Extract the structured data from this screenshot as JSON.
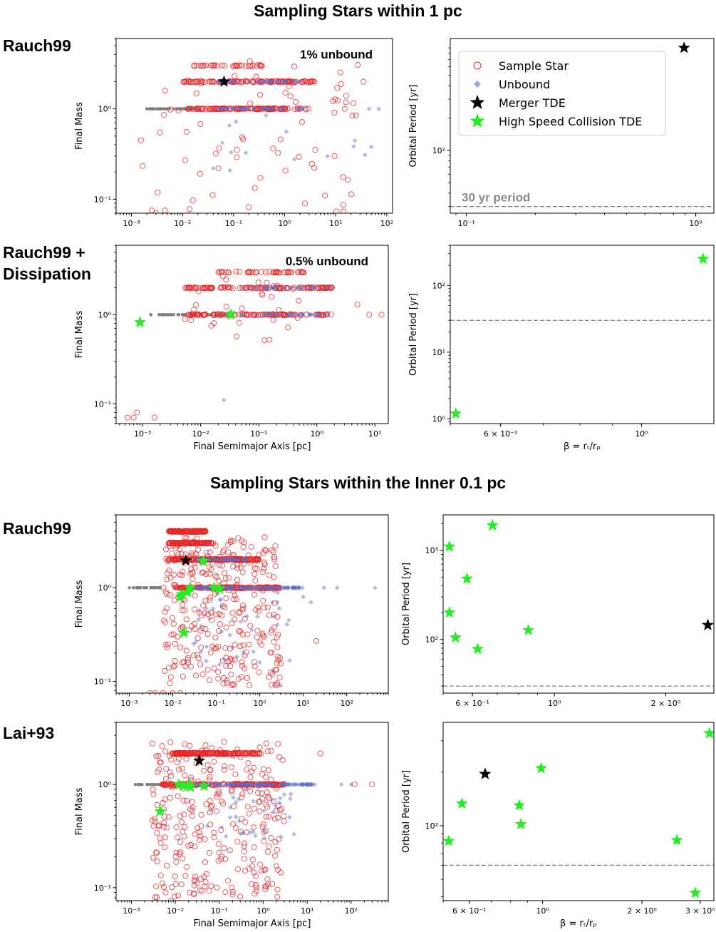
{
  "section_titles": [
    "Sampling Stars within 1 pc",
    "Sampling Stars within the Inner 0.1 pc"
  ],
  "row_labels": [
    "Rauch99",
    "Rauch99 + Dissipation",
    "Rauch99",
    "Lai+93"
  ],
  "legend": {
    "sample": "Sample Star",
    "unbound": "Unbound",
    "merger": "Merger TDE",
    "hsc": "High Speed Collision TDE"
  },
  "colors": {
    "sample": "#e8282a",
    "unbound": "#5a6cc8",
    "bound_gray": "#808080",
    "merger": "#000000",
    "hsc": "#22ee22",
    "reference_line": "#808080"
  },
  "chart_data": [
    {
      "id": "p1",
      "type": "scatter",
      "title": "",
      "xlabel": "",
      "ylabel": "Final Mass",
      "xscale": "log",
      "yscale": "log",
      "xlim": [
        0.0005,
        130
      ],
      "ylim": [
        0.07,
        6
      ],
      "xticks": [
        0.001,
        0.01,
        0.1,
        1,
        10,
        100
      ],
      "xticklabels": [
        "10⁻³",
        "10⁻²",
        "10⁻¹",
        "10⁰",
        "10¹",
        "10²"
      ],
      "yticks": [
        0.1,
        1
      ],
      "yticklabels": [
        "10⁻¹",
        "10⁰"
      ],
      "annotation": "1% unbound",
      "annotation_position": "top-right",
      "bands": {
        "gray_line": {
          "mass": 1,
          "x_range": [
            0.0015,
            0.02
          ]
        },
        "sample_bands": [
          {
            "mass": 1,
            "x_range": [
              0.012,
              3
            ],
            "n": 120
          },
          {
            "mass": 2,
            "x_range": [
              0.01,
              4
            ],
            "n": 110
          },
          {
            "mass": 3,
            "x_range": [
              0.013,
              0.5
            ],
            "n": 35
          }
        ],
        "sample_scatter": {
          "x_range": [
            0.0015,
            30
          ],
          "m_range": [
            0.07,
            3.5
          ],
          "n": 70
        },
        "unbound_bands": [
          {
            "mass": 1,
            "x_range": [
              0.05,
              3
            ],
            "n": 40
          },
          {
            "mass": 2,
            "x_range": [
              0.05,
              3
            ],
            "n": 40
          }
        ],
        "unbound_scatter": {
          "x_range": [
            0.05,
            70
          ],
          "m_range": [
            0.2,
            1
          ],
          "n": 12
        },
        "extra_sample": [
          [
            0.0025,
            0.075
          ],
          [
            0.003,
            0.07
          ],
          [
            0.0045,
            0.075
          ],
          [
            35,
            2
          ],
          [
            15,
            1
          ]
        ],
        "extra_unbound": [
          [
            70,
            1
          ],
          [
            45,
            1
          ],
          [
            0.06,
            0.42
          ],
          [
            0.09,
            0.33
          ],
          [
            0.04,
            0.22
          ]
        ]
      },
      "merger_tde": [
        [
          0.065,
          2
        ]
      ],
      "hsc_tde": []
    },
    {
      "id": "p2",
      "type": "scatter",
      "xlabel": "",
      "ylabel": "Orbital Period [yr]",
      "xscale": "log",
      "yscale": "log",
      "xlim": [
        0.085,
        1.2
      ],
      "ylim": [
        26,
        1100
      ],
      "xticks": [
        0.1,
        1
      ],
      "xticklabels": [
        "10⁻¹",
        "10⁰"
      ],
      "yticks": [
        100
      ],
      "yticklabels": [
        "10²"
      ],
      "reference_line": {
        "y": 30,
        "label": "30 yr period",
        "style": "dashed"
      },
      "legend_position": "upper-left",
      "merger_tde": [
        [
          0.89,
          900
        ]
      ],
      "hsc_tde": []
    },
    {
      "id": "p3",
      "type": "scatter",
      "xlabel": "Final Semimajor Axis [pc]",
      "ylabel": "Final Mass",
      "xscale": "log",
      "yscale": "log",
      "xlim": [
        0.00035,
        17
      ],
      "ylim": [
        0.06,
        6
      ],
      "xticks": [
        0.001,
        0.01,
        0.1,
        1,
        10
      ],
      "xticklabels": [
        "10⁻³",
        "10⁻²",
        "10⁻¹",
        "10⁰",
        "10¹"
      ],
      "yticks": [
        0.1,
        1
      ],
      "yticklabels": [
        "10⁻¹",
        "10⁰"
      ],
      "annotation": "0.5% unbound",
      "annotation_position": "top-right",
      "bands": {
        "gray_line": {
          "mass": 1,
          "x_range": [
            0.0012,
            0.03
          ]
        },
        "sample_bands": [
          {
            "mass": 1,
            "x_range": [
              0.006,
              1.8
            ],
            "n": 110
          },
          {
            "mass": 2,
            "x_range": [
              0.005,
              2.2
            ],
            "n": 110
          },
          {
            "mass": 3,
            "x_range": [
              0.015,
              0.6
            ],
            "n": 45
          }
        ],
        "sample_scatter": {
          "x_range": [
            0.005,
            0.5
          ],
          "m_range": [
            0.5,
            3.2
          ],
          "n": 30
        },
        "unbound_bands": [
          {
            "mass": 1,
            "x_range": [
              0.05,
              1.5
            ],
            "n": 30
          },
          {
            "mass": 2,
            "x_range": [
              0.05,
              2.0
            ],
            "n": 30
          }
        ],
        "unbound_scatter": {
          "x_range": [
            0.1,
            1.5
          ],
          "m_range": [
            0.9,
            2.1
          ],
          "n": 0
        },
        "extra_sample": [
          [
            0.00055,
            0.07
          ],
          [
            0.0007,
            0.07
          ],
          [
            0.0008,
            0.08
          ],
          [
            0.0016,
            0.07
          ],
          [
            8,
            1
          ],
          [
            13,
            1
          ],
          [
            5,
            1.3
          ]
        ],
        "extra_unbound": [
          [
            0.025,
            0.11
          ]
        ]
      },
      "merger_tde": [],
      "hsc_tde": [
        [
          0.0009,
          0.82
        ],
        [
          0.033,
          1.0
        ]
      ]
    },
    {
      "id": "p4",
      "type": "scatter",
      "xlabel": "β = rₜ/rₚ",
      "ylabel": "Orbital Period [yr]",
      "xscale": "log",
      "yscale": "log",
      "xlim": [
        0.5,
        1.3
      ],
      "ylim": [
        0.85,
        400
      ],
      "xticks": [
        0.6,
        1.0
      ],
      "xticklabels": [
        "6 × 10⁻¹",
        "10⁰"
      ],
      "yticks": [
        1,
        10,
        100
      ],
      "yticklabels": [
        "10⁰",
        "10¹",
        "10²"
      ],
      "reference_line": {
        "y": 30,
        "label": "",
        "style": "dashed"
      },
      "merger_tde": [],
      "hsc_tde": [
        [
          0.51,
          1.2
        ],
        [
          1.25,
          250
        ]
      ]
    },
    {
      "id": "p5",
      "type": "scatter",
      "xlabel": "",
      "ylabel": "Final Mass",
      "xscale": "log",
      "yscale": "log",
      "xlim": [
        0.0005,
        900
      ],
      "ylim": [
        0.075,
        6
      ],
      "xticks": [
        0.001,
        0.01,
        0.1,
        1,
        10,
        100
      ],
      "xticklabels": [
        "10⁻³",
        "10⁻²",
        "10⁻¹",
        "10⁰",
        "10¹",
        "10²"
      ],
      "yticks": [
        0.1,
        1
      ],
      "yticklabels": [
        "10⁻¹",
        "10⁰"
      ],
      "bands": {
        "gray_line": {
          "mass": 1,
          "x_range": [
            0.001,
            0.04
          ]
        },
        "sample_bands": [
          {
            "mass": 4,
            "x_range": [
              0.008,
              0.06
            ],
            "n": 120
          },
          {
            "mass": 3,
            "x_range": [
              0.008,
              0.08
            ],
            "n": 120
          },
          {
            "mass": 2,
            "x_range": [
              0.008,
              1.0
            ],
            "n": 160
          },
          {
            "mass": 1,
            "x_range": [
              0.01,
              3
            ],
            "n": 140
          }
        ],
        "sample_scatter": {
          "x_range": [
            0.006,
            3
          ],
          "m_range": [
            0.09,
            3.5
          ],
          "n": 320
        },
        "unbound_bands": [
          {
            "mass": 1,
            "x_range": [
              0.03,
              10
            ],
            "n": 110
          },
          {
            "mass": 2,
            "x_range": [
              0.03,
              0.5
            ],
            "n": 50
          }
        ],
        "unbound_scatter": {
          "x_range": [
            0.03,
            5
          ],
          "m_range": [
            0.15,
            1
          ],
          "n": 40
        },
        "extra_sample": [
          [
            0.003,
            0.075
          ],
          [
            0.004,
            0.075
          ],
          [
            0.006,
            0.075
          ],
          [
            0.01,
            0.075
          ],
          [
            0.015,
            0.075
          ],
          [
            20,
            0.27
          ]
        ],
        "extra_unbound": [
          [
            30,
            1
          ],
          [
            60,
            1
          ],
          [
            450,
            1
          ],
          [
            10,
            0.8
          ],
          [
            15,
            0.7
          ],
          [
            2,
            0.13
          ],
          [
            3,
            0.09
          ],
          [
            1,
            0.16
          ]
        ]
      },
      "merger_tde": [
        [
          0.02,
          1.95
        ]
      ],
      "hsc_tde": [
        [
          0.05,
          1.92
        ],
        [
          0.016,
          0.85
        ],
        [
          0.022,
          0.9
        ],
        [
          0.025,
          1.0
        ],
        [
          0.09,
          1.0
        ],
        [
          0.12,
          0.98
        ],
        [
          0.018,
          0.33
        ],
        [
          0.015,
          0.8
        ]
      ]
    },
    {
      "id": "p6",
      "type": "scatter",
      "xlabel": "",
      "ylabel": "Orbital Period [yr]",
      "xscale": "log",
      "yscale": "log",
      "xlim": [
        0.5,
        2.7
      ],
      "ylim": [
        25,
        2500
      ],
      "xticks": [
        0.6,
        1.0,
        2.0
      ],
      "xticklabels": [
        "6 × 10⁻¹",
        "10⁰",
        "2 × 10⁰"
      ],
      "yticks": [
        100,
        1000
      ],
      "yticklabels": [
        "10²",
        "10³"
      ],
      "reference_line": {
        "y": 30,
        "label": "",
        "style": "dashed"
      },
      "merger_tde": [
        [
          2.6,
          145
        ]
      ],
      "hsc_tde": [
        [
          0.52,
          1100
        ],
        [
          0.52,
          200
        ],
        [
          0.54,
          105
        ],
        [
          0.58,
          480
        ],
        [
          0.68,
          1900
        ],
        [
          0.62,
          78
        ],
        [
          0.85,
          127
        ]
      ]
    },
    {
      "id": "p7",
      "type": "scatter",
      "xlabel": "Final Semimajor Axis [pc]",
      "ylabel": "Final Mass",
      "xscale": "log",
      "yscale": "log",
      "xlim": [
        0.00045,
        700
      ],
      "ylim": [
        0.075,
        4
      ],
      "xticks": [
        0.001,
        0.01,
        0.1,
        1,
        10,
        100
      ],
      "xticklabels": [
        "10⁻³",
        "10⁻²",
        "10⁻¹",
        "10⁰",
        "10¹",
        "10²"
      ],
      "yticks": [
        0.1,
        1
      ],
      "yticklabels": [
        "10⁻¹",
        "10⁰"
      ],
      "bands": {
        "gray_line": {
          "mass": 1,
          "x_range": [
            0.001,
            0.03
          ]
        },
        "sample_bands": [
          {
            "mass": 2,
            "x_range": [
              0.008,
              0.9
            ],
            "n": 170
          },
          {
            "mass": 1,
            "x_range": [
              0.005,
              3
            ],
            "n": 150
          }
        ],
        "sample_scatter": {
          "x_range": [
            0.003,
            3
          ],
          "m_range": [
            0.08,
            2.6
          ],
          "n": 300
        },
        "unbound_bands": [
          {
            "mass": 1,
            "x_range": [
              0.03,
              15
            ],
            "n": 120
          }
        ],
        "unbound_scatter": {
          "x_range": [
            0.05,
            5
          ],
          "m_range": [
            0.3,
            1
          ],
          "n": 30
        },
        "extra_sample": [
          [
            0.003,
            2.5
          ],
          [
            0.006,
            0.09
          ],
          [
            0.008,
            0.075
          ],
          [
            20,
            2
          ],
          [
            120,
            1
          ],
          [
            300,
            1
          ]
        ],
        "extra_unbound": [
          [
            60,
            1
          ],
          [
            100,
            1
          ],
          [
            3,
            0.8
          ],
          [
            4,
            0.48
          ],
          [
            5,
            0.33
          ]
        ]
      },
      "merger_tde": [
        [
          0.035,
          1.7
        ]
      ],
      "hsc_tde": [
        [
          0.0045,
          0.55
        ],
        [
          0.012,
          1.0
        ],
        [
          0.015,
          0.97
        ],
        [
          0.021,
          1.0
        ],
        [
          0.022,
          0.95
        ],
        [
          0.045,
          0.97
        ]
      ]
    },
    {
      "id": "p8",
      "type": "scatter",
      "xlabel": "β = rₜ/rₚ",
      "ylabel": "Orbital Period [yr]",
      "xscale": "log",
      "yscale": "log",
      "xlim": [
        0.5,
        3.3
      ],
      "ylim": [
        38,
        380
      ],
      "xticks": [
        0.6,
        1.0,
        2.0,
        3.0
      ],
      "xticklabels": [
        "6 × 10⁻¹",
        "10⁰",
        "2 × 10⁰",
        "3 × 10⁰"
      ],
      "yticks": [
        100
      ],
      "yticklabels": [
        "10²"
      ],
      "reference_line": {
        "y": 60,
        "label": "",
        "style": "dashed"
      },
      "merger_tde": [
        [
          0.67,
          195
        ]
      ],
      "hsc_tde": [
        [
          0.52,
          82
        ],
        [
          0.57,
          133
        ],
        [
          0.85,
          130
        ],
        [
          0.86,
          102
        ],
        [
          0.99,
          210
        ],
        [
          2.55,
          83
        ],
        [
          2.9,
          42
        ],
        [
          3.2,
          330
        ]
      ]
    }
  ]
}
